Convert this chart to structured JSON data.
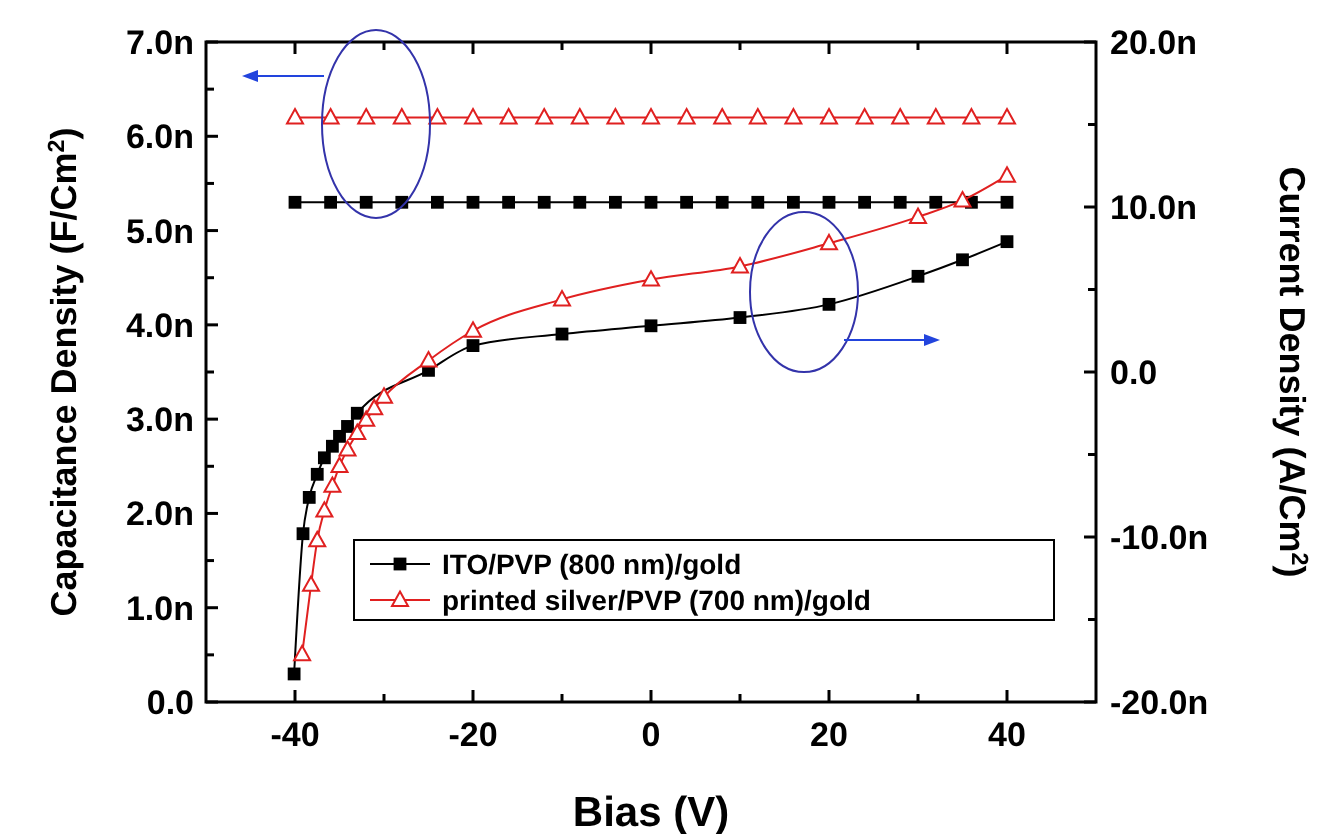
{
  "chart_data": {
    "type": "line",
    "xlabel": "Bias (V)",
    "ylabel": "Capacitance Density (F/Cm$^{2}$)",
    "y2label": "Current Density (A/Cm$^{2}$)",
    "xlim": [
      -50,
      50
    ],
    "xticks": [
      -40,
      {
        "value": -30,
        "label": null
      },
      -20,
      {
        "value": -10,
        "label": null
      },
      0,
      {
        "value": 10,
        "label": null
      },
      20,
      {
        "value": 30,
        "label": null
      },
      40
    ],
    "ylim": [
      0,
      7
    ],
    "yticks": [
      {
        "value": 0,
        "label": "0.0"
      },
      {
        "value": 0.5,
        "label": null
      },
      {
        "value": 1,
        "label": "1.0n"
      },
      {
        "value": 1.5,
        "label": null
      },
      {
        "value": 2,
        "label": "2.0n"
      },
      {
        "value": 2.5,
        "label": null
      },
      {
        "value": 3,
        "label": "3.0n"
      },
      {
        "value": 3.5,
        "label": null
      },
      {
        "value": 4,
        "label": "4.0n"
      },
      {
        "value": 4.5,
        "label": null
      },
      {
        "value": 5,
        "label": "5.0n"
      },
      {
        "value": 5.5,
        "label": null
      },
      {
        "value": 6,
        "label": "6.0n"
      },
      {
        "value": 6.5,
        "label": null
      },
      {
        "value": 7,
        "label": "7.0n"
      }
    ],
    "y2lim": [
      -20,
      20
    ],
    "y2ticks": [
      {
        "value": -20,
        "label": "-20.0n"
      },
      {
        "value": -15,
        "label": null
      },
      {
        "value": -10,
        "label": "-10.0n"
      },
      {
        "value": -5,
        "label": null
      },
      {
        "value": 0,
        "label": "0.0"
      },
      {
        "value": 5,
        "label": null
      },
      {
        "value": 10,
        "label": "10.0n"
      },
      {
        "value": 15,
        "label": null
      },
      {
        "value": 20,
        "label": "20.0n"
      }
    ],
    "grid": false,
    "legend": "bottom right",
    "line_style": "solid",
    "series": [
      {
        "name": "ITO/PVP (800 nm)/gold",
        "color": "#000000",
        "marker": "square",
        "x": [
          -40,
          -36,
          -32,
          -28,
          -24,
          -20,
          -16,
          -12,
          -8,
          -4,
          0,
          4,
          8,
          12,
          16,
          20,
          24,
          28,
          32,
          36,
          40
        ],
        "values": [
          5.3,
          5.3,
          5.3,
          5.3,
          5.3,
          5.3,
          5.3,
          5.3,
          5.3,
          5.3,
          5.3,
          5.3,
          5.3,
          5.3,
          5.3,
          5.3,
          5.3,
          5.3,
          5.3,
          5.3,
          5.3
        ]
      },
      {
        "name": "printed silver/PVP (700 nm)/gold",
        "color": "#e02020",
        "marker": "triangle",
        "x": [
          -40,
          -36,
          -32,
          -28,
          -24,
          -20,
          -16,
          -12,
          -8,
          -4,
          0,
          4,
          8,
          12,
          16,
          20,
          24,
          28,
          32,
          36,
          40
        ],
        "values": [
          6.2,
          6.2,
          6.2,
          6.2,
          6.2,
          6.2,
          6.2,
          6.2,
          6.2,
          6.2,
          6.2,
          6.2,
          6.2,
          6.2,
          6.2,
          6.2,
          6.2,
          6.2,
          6.2,
          6.2,
          6.2
        ]
      },
      {
        "color": "#000000",
        "marker": "square",
        "axis": "y2",
        "x": [
          -40.1,
          -39.1,
          -38.4,
          -37.5,
          -36.7,
          -35.8,
          -35,
          -34.1,
          -33,
          -30,
          -25,
          -20,
          -10,
          0,
          10,
          20,
          30,
          35,
          40
        ],
        "values": [
          -18.3,
          -9.8,
          -7.6,
          -6.2,
          -5.2,
          -4.5,
          -3.9,
          -3.3,
          -2.5,
          null,
          0.1,
          1.6,
          2.3,
          2.8,
          3.3,
          4.1,
          5.8,
          6.8,
          7.9
        ]
      },
      {
        "color": "#e02020",
        "marker": "triangle",
        "axis": "y2",
        "x": [
          -39.2,
          -38.2,
          -37.5,
          -36.7,
          -35.8,
          -35,
          -34.1,
          -33,
          -32,
          -31.1,
          -30,
          -25,
          -20,
          -10,
          0,
          10,
          20,
          30,
          35,
          40
        ],
        "values": [
          -17.1,
          -12.9,
          -10.2,
          -8.4,
          -6.9,
          -5.7,
          -4.7,
          -3.7,
          -2.9,
          -2.2,
          -1.5,
          0.7,
          2.5,
          4.4,
          5.6,
          6.4,
          7.8,
          9.4,
          10.4,
          11.9
        ]
      }
    ]
  }
}
